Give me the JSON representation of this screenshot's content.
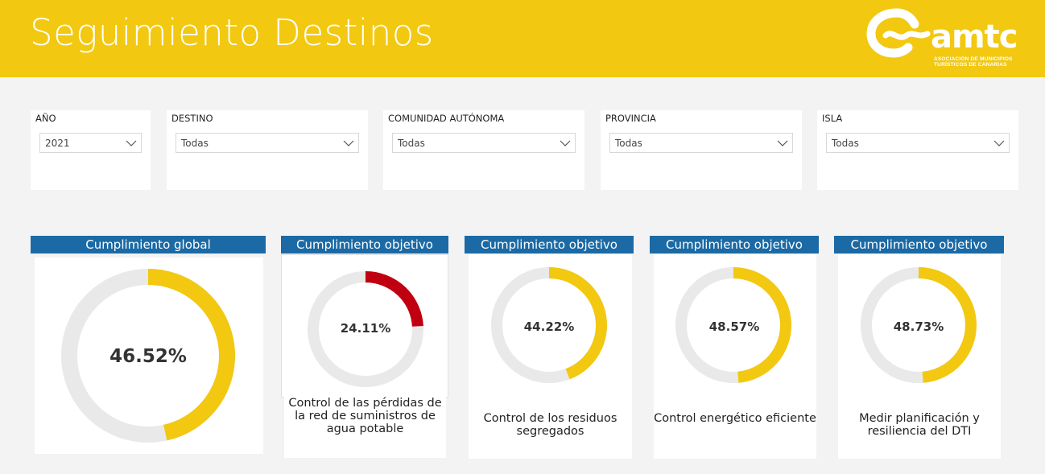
{
  "header": {
    "title": "Seguimiento Destinos",
    "background": "#f2c811",
    "logo": {
      "wordmark": "amtc",
      "subtitle_line1": "ASOCIACIÓN DE MUNICIPIOS",
      "subtitle_line2": "TURÍSTICOS DE CANARIAS"
    }
  },
  "filters": [
    {
      "label": "AÑO",
      "value": "2021"
    },
    {
      "label": "DESTINO",
      "value": "Todas"
    },
    {
      "label": "COMUNIDAD AUTÓNOMA",
      "value": "Todas"
    },
    {
      "label": "PROVINCIA",
      "value": "Todas"
    },
    {
      "label": "ISLA",
      "value": "Todas"
    }
  ],
  "colors": {
    "header_blue": "#1b6aa5",
    "gauge_yellow": "#f2c811",
    "gauge_red": "#c00010",
    "gauge_track": "#e9e9e9"
  },
  "cards": [
    {
      "header": "Cumplimiento global",
      "value_label": "46.52%",
      "value": 46.52,
      "caption": "",
      "color": "#f2c811"
    },
    {
      "header": "Cumplimiento objetivo",
      "value_label": "24.11%",
      "value": 24.11,
      "caption": "Control de las pérdidas de la red de suministros de agua potable",
      "color": "#c00010"
    },
    {
      "header": "Cumplimiento objetivo",
      "value_label": "44.22%",
      "value": 44.22,
      "caption": "Control de los residuos segregados",
      "color": "#f2c811"
    },
    {
      "header": "Cumplimiento objetivo",
      "value_label": "48.57%",
      "value": 48.57,
      "caption": "Control energético eficiente",
      "color": "#f2c811"
    },
    {
      "header": "Cumplimiento objetivo",
      "value_label": "48.73%",
      "value": 48.73,
      "caption": "Medir planificación y resiliencia del DTI",
      "color": "#f2c811"
    }
  ]
}
